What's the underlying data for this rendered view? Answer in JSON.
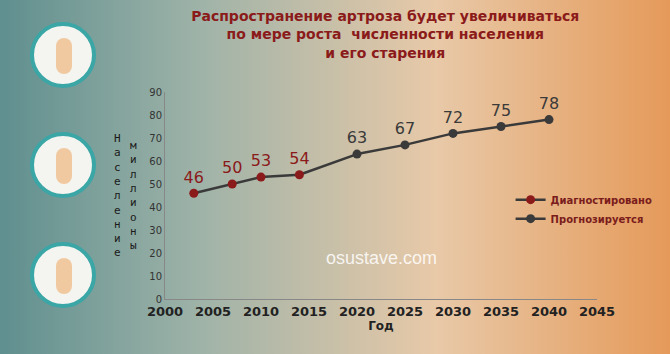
{
  "chart_data": {
    "type": "line",
    "title": "Распространение артроза будет увеличиваться\nпо мере роста  численности населения\nи его старения",
    "x_label": "Год",
    "y_label": "Население миллионы",
    "series": [
      {
        "name": "Диагностировано",
        "color": "#8b1a1a",
        "x": [
          2003,
          2007,
          2010,
          2014
        ],
        "values": [
          46,
          50,
          53,
          54
        ]
      },
      {
        "name": "Прогнозируется",
        "color": "#3a3a3a",
        "x": [
          2020,
          2025,
          2030,
          2035,
          2040
        ],
        "values": [
          63,
          67,
          72,
          75,
          78
        ]
      }
    ],
    "xlim": [
      2000,
      2045
    ],
    "xticks": [
      2000,
      2005,
      2010,
      2015,
      2020,
      2025,
      2030,
      2035,
      2040,
      2045
    ],
    "ylim": [
      0,
      90
    ],
    "yticks": [
      0,
      10,
      20,
      30,
      40,
      50,
      60,
      70,
      80,
      90
    ],
    "grid": false,
    "data_labels": true,
    "legend": "right",
    "marker": "circle",
    "annotations": [
      "osustave.com"
    ]
  }
}
